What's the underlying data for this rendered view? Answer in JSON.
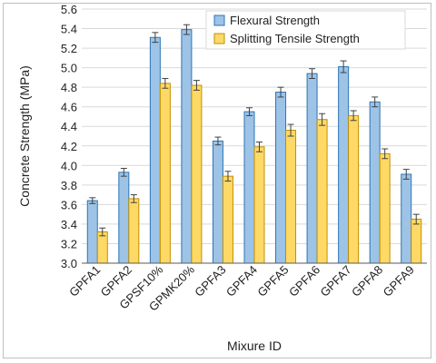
{
  "chart_data": {
    "type": "bar",
    "title": "",
    "xlabel": "Mixure ID",
    "ylabel": "Concrete Strength (MPa)",
    "ylim": [
      3.0,
      5.6
    ],
    "yticks": [
      "3.0",
      "3.2",
      "3.4",
      "3.6",
      "3.8",
      "4.0",
      "4.2",
      "4.4",
      "4.6",
      "4.8",
      "5.0",
      "5.2",
      "5.4",
      "5.6"
    ],
    "grid": true,
    "legend_position": "top-right",
    "categories": [
      "GPFA1",
      "GPFA2",
      "GPSF10%",
      "GPMK20%",
      "GPFA3",
      "GPFA4",
      "GPFA5",
      "GPFA6",
      "GPFA7",
      "GPFA8",
      "GPFA9"
    ],
    "series": [
      {
        "name": "Flexural Strength",
        "fill": "#9dc3e6",
        "stroke": "#2e75b6",
        "values": [
          3.64,
          3.93,
          5.31,
          5.39,
          4.25,
          4.55,
          4.75,
          4.94,
          5.01,
          4.65,
          3.91
        ],
        "errors": [
          0.03,
          0.04,
          0.05,
          0.05,
          0.04,
          0.04,
          0.05,
          0.05,
          0.06,
          0.05,
          0.05
        ]
      },
      {
        "name": "Splitting Tensile Strength",
        "fill": "#ffd966",
        "stroke": "#bf9000",
        "values": [
          3.32,
          3.66,
          4.84,
          4.82,
          3.89,
          4.19,
          4.36,
          4.47,
          4.51,
          4.12,
          3.45
        ],
        "errors": [
          0.04,
          0.04,
          0.05,
          0.05,
          0.05,
          0.05,
          0.06,
          0.06,
          0.05,
          0.05,
          0.05
        ]
      }
    ]
  }
}
